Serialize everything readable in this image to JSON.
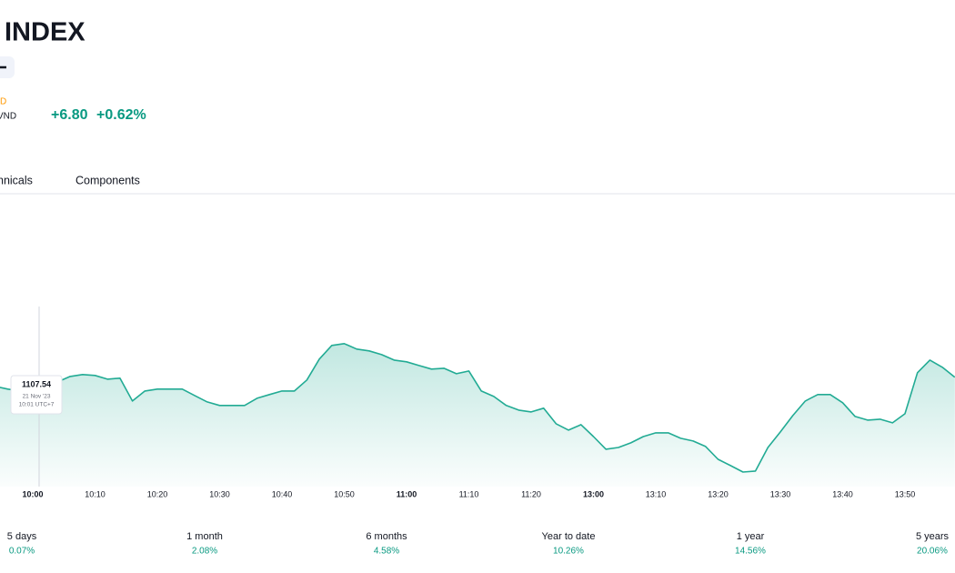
{
  "header": {
    "title": "INDEX",
    "status": "D",
    "currency": "VND",
    "change": "+6.80",
    "change_percent": "+0.62%"
  },
  "tabs": [
    "hnicals",
    "Components"
  ],
  "chart_data": {
    "type": "line",
    "categories": [
      null,
      null,
      null,
      "10:00",
      null,
      null,
      null,
      null,
      "10:10",
      null,
      null,
      null,
      null,
      "10:20",
      null,
      null,
      null,
      null,
      "10:30",
      null,
      null,
      null,
      null,
      "10:40",
      null,
      null,
      null,
      null,
      "10:50",
      null,
      null,
      null,
      null,
      "11:00",
      null,
      null,
      null,
      null,
      "11:10",
      null,
      null,
      null,
      null,
      "11:20",
      null,
      null,
      null,
      null,
      "13:00",
      null,
      null,
      null,
      null,
      "13:10",
      null,
      null,
      null,
      null,
      "13:20",
      null,
      null,
      null,
      null,
      "13:30",
      null,
      null,
      null,
      null,
      "13:40",
      null,
      null,
      null,
      null,
      "13:50",
      null,
      null,
      null,
      null
    ],
    "values": [
      1108.17,
      1107.92,
      1107.75,
      1107.5,
      1107.92,
      1108.58,
      1109.08,
      1109.25,
      1109.17,
      1108.83,
      1108.92,
      1106.83,
      1107.75,
      1107.92,
      1107.92,
      1107.92,
      1107.33,
      1106.75,
      1106.42,
      1106.42,
      1106.42,
      1107.08,
      1107.42,
      1107.75,
      1107.75,
      1108.75,
      1110.67,
      1111.92,
      1112.08,
      1111.58,
      1111.42,
      1111.08,
      1110.58,
      1110.42,
      1110.08,
      1109.75,
      1109.83,
      1109.33,
      1109.58,
      1107.75,
      1107.25,
      1106.42,
      1106.0,
      1105.83,
      1106.17,
      1104.75,
      1104.17,
      1104.67,
      1103.58,
      1102.42,
      1102.58,
      1103.0,
      1103.58,
      1103.92,
      1103.92,
      1103.42,
      1103.17,
      1102.67,
      1101.5,
      1100.92,
      1100.33,
      1100.42,
      1102.58,
      1104.0,
      1105.5,
      1106.83,
      1107.42,
      1107.42,
      1106.67,
      1105.42,
      1105.08,
      1105.17,
      1104.83,
      1105.67,
      1109.42,
      1110.58,
      1109.92,
      1109.0
    ],
    "color": "#22ab94",
    "ylim": [
      1099,
      1124.8
    ],
    "tooltip": {
      "value": 1107.54,
      "date": "21 Nov '23",
      "time": "10:01 UTC+7"
    }
  },
  "performance": [
    {
      "period": "5 days",
      "change": "0.07%"
    },
    {
      "period": "1 month",
      "change": "2.08%"
    },
    {
      "period": "6 months",
      "change": "4.58%"
    },
    {
      "period": "Year to date",
      "change": "10.26%"
    },
    {
      "period": "1 year",
      "change": "14.56%"
    },
    {
      "period": "5 years",
      "change": "20.06%"
    }
  ]
}
